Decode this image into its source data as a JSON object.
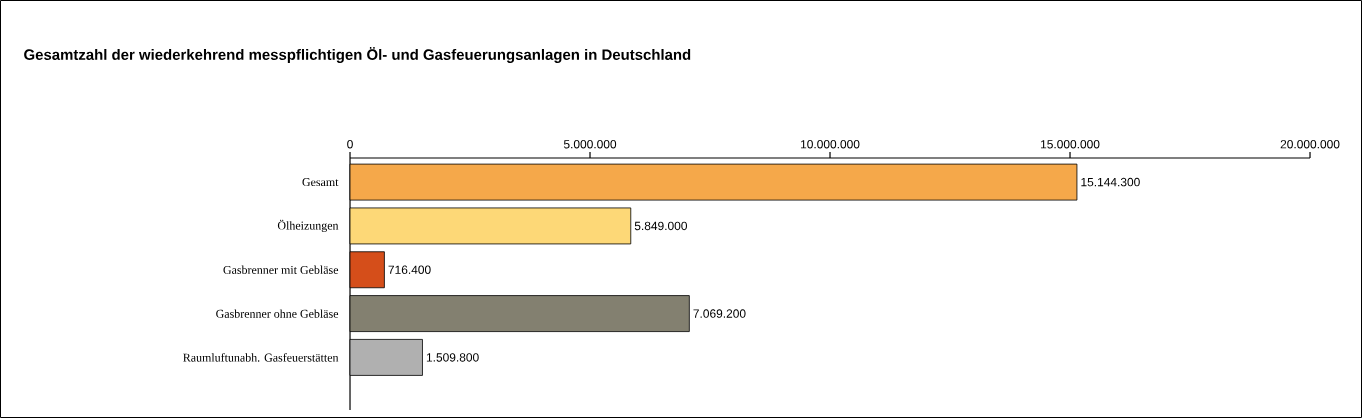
{
  "chart_data": {
    "type": "bar",
    "orientation": "horizontal",
    "title": "Gesamtzahl der wiederkehrend messpflichtigen Öl- und Gasfeuerungsanlagen in Deutschland",
    "categories": [
      "Gesamt",
      "Ölheizungen",
      "Gasbrenner mit Gebläse",
      "Gasbrenner ohne Gebläse",
      "Raumluftunabh. Gasfeuerstätten"
    ],
    "values": [
      15144300,
      5849000,
      716400,
      7069200,
      1509800
    ],
    "colors": [
      "#f5a84a",
      "#fdd877",
      "#d54e1a",
      "#838070",
      "#b0b0b0"
    ],
    "value_labels": [
      "15.144.300",
      "5.849.000",
      "716.400",
      "7.069.200",
      "1.509.800"
    ],
    "xlim": [
      0,
      20000000
    ],
    "xticks": [
      0,
      {
        "value": 5000000,
        "label": "5.000.000"
      },
      {
        "value": 10000000,
        "label": "10.000.000"
      },
      {
        "value": 15000000,
        "label": "15.000.000"
      },
      {
        "value": 20000000,
        "label": "20.000.000"
      }
    ],
    "grid": false
  }
}
